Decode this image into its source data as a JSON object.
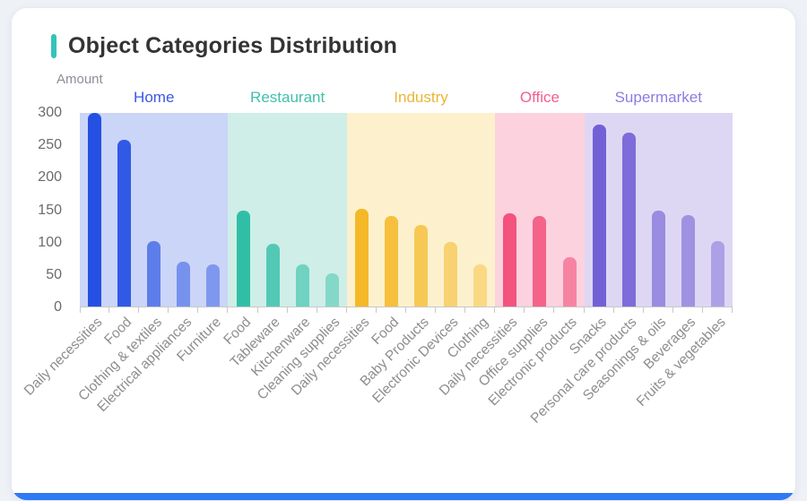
{
  "colors": {
    "title_accent": "#35c2b9",
    "footer_bar": "#3079f4",
    "card_background": "#ffffff",
    "page_background": "#eef1f6",
    "title_text": "#333333",
    "axis_line": "#c8c8c8"
  },
  "chart_data": {
    "type": "bar",
    "title": "Object Categories Distribution",
    "ylabel": "Amount",
    "xlabel": "",
    "ylim": [
      0,
      300
    ],
    "yticks": [
      300,
      250,
      200,
      150,
      100,
      50,
      0
    ],
    "grid": false,
    "legend_position": "top-inline-group-labels",
    "groups": [
      {
        "name": "Home",
        "label_color": "#3a57e8",
        "bar_color": "#2450e4",
        "band_color": "#cbd5f7",
        "bars": [
          {
            "label": "Daily necessities",
            "value": 300,
            "opacity": 1
          },
          {
            "label": "Food",
            "value": 258,
            "opacity": 0.93
          },
          {
            "label": "Clothing & textiles",
            "value": 102,
            "opacity": 0.66
          },
          {
            "label": "Electrical appliances",
            "value": 69,
            "opacity": 0.5
          },
          {
            "label": "Furniture",
            "value": 65,
            "opacity": 0.46
          }
        ]
      },
      {
        "name": "Restaurant",
        "label_color": "#3fc1ab",
        "bar_color": "#30bfa6",
        "band_color": "#cfeee8",
        "bars": [
          {
            "label": "Food",
            "value": 149,
            "opacity": 1
          },
          {
            "label": "Tableware",
            "value": 97,
            "opacity": 0.78
          },
          {
            "label": "Kitchenware",
            "value": 65,
            "opacity": 0.6
          },
          {
            "label": "Cleaning supplies",
            "value": 51,
            "opacity": 0.47
          }
        ]
      },
      {
        "name": "Industry",
        "label_color": "#eab534",
        "bar_color": "#f5b827",
        "band_color": "#fdf1cd",
        "bars": [
          {
            "label": "Daily necessities",
            "value": 151,
            "opacity": 1
          },
          {
            "label": "Food",
            "value": 140,
            "opacity": 0.86
          },
          {
            "label": "Baby Products",
            "value": 126,
            "opacity": 0.72
          },
          {
            "label": "Electronic Devices",
            "value": 100,
            "opacity": 0.56
          },
          {
            "label": "Clothing",
            "value": 65,
            "opacity": 0.44
          }
        ]
      },
      {
        "name": "Office",
        "label_color": "#f45e8c",
        "bar_color": "#f3537e",
        "band_color": "#fcd2de",
        "bars": [
          {
            "label": "Daily necessities",
            "value": 144,
            "opacity": 1
          },
          {
            "label": "Office supplies",
            "value": 140,
            "opacity": 0.88
          },
          {
            "label": "Electronic products",
            "value": 76,
            "opacity": 0.62
          }
        ]
      },
      {
        "name": "Supermarket",
        "label_color": "#8f7ae0",
        "bar_color": "#7261d6",
        "band_color": "#ded7f4",
        "bars": [
          {
            "label": "Snacks",
            "value": 282,
            "opacity": 1
          },
          {
            "label": "Personal care products",
            "value": 270,
            "opacity": 0.9
          },
          {
            "label": "Seasonings & oils",
            "value": 149,
            "opacity": 0.64
          },
          {
            "label": "Beverages",
            "value": 142,
            "opacity": 0.58
          },
          {
            "label": "Fruits & vegetables",
            "value": 102,
            "opacity": 0.46
          }
        ]
      }
    ]
  }
}
